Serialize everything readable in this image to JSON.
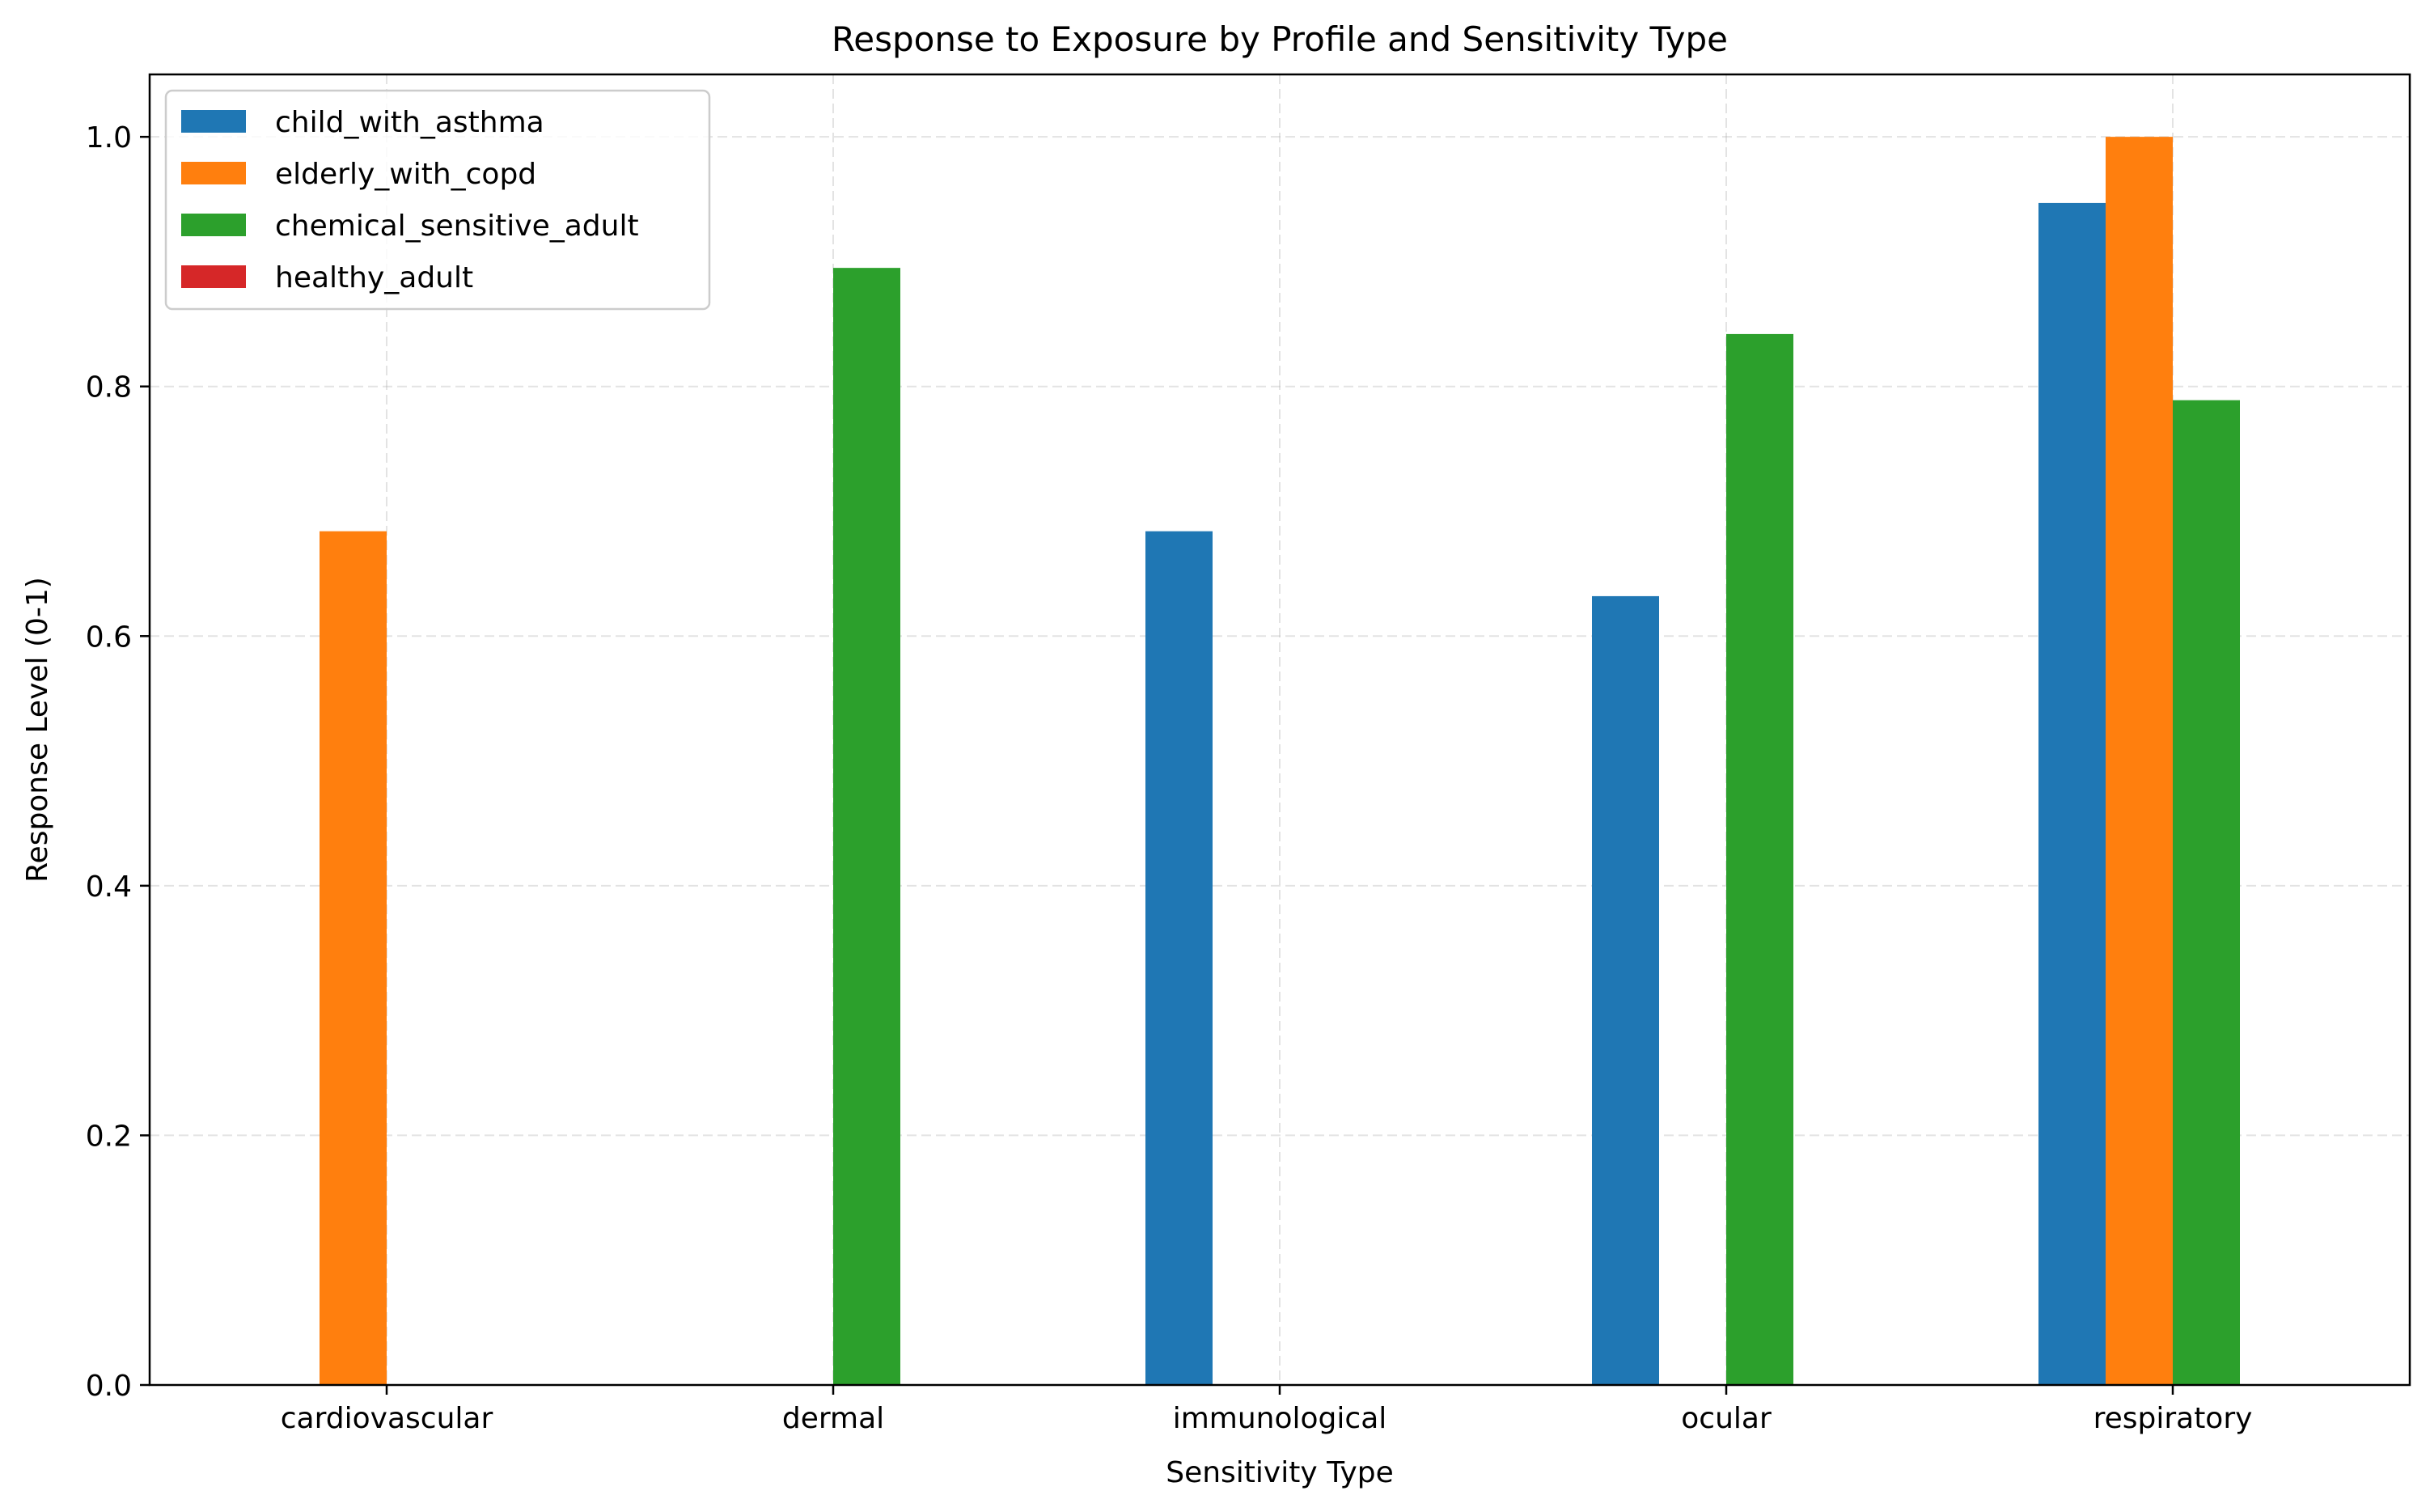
{
  "chart_data": {
    "type": "bar",
    "title": "Response to Exposure by Profile and Sensitivity Type",
    "xlabel": "Sensitivity Type",
    "ylabel": "Response Level (0-1)",
    "categories": [
      "cardiovascular",
      "dermal",
      "immunological",
      "ocular",
      "respiratory"
    ],
    "ylim": [
      0,
      1.05
    ],
    "yticks": [
      "0.0",
      "0.2",
      "0.4",
      "0.6",
      "0.8",
      "1.0"
    ],
    "grid": true,
    "legend_position": "top-left",
    "series": [
      {
        "name": "child_with_asthma",
        "color": "#1f77b4",
        "values": [
          0,
          0,
          0.684,
          0.632,
          0.947
        ]
      },
      {
        "name": "elderly_with_copd",
        "color": "#ff7f0e",
        "values": [
          0.684,
          0,
          0,
          0,
          1.0
        ]
      },
      {
        "name": "chemical_sensitive_adult",
        "color": "#2ca02c",
        "values": [
          0,
          0.895,
          0,
          0.842,
          0.789
        ]
      },
      {
        "name": "healthy_adult",
        "color": "#d62728",
        "values": [
          0,
          0,
          0,
          0,
          0
        ]
      }
    ]
  }
}
